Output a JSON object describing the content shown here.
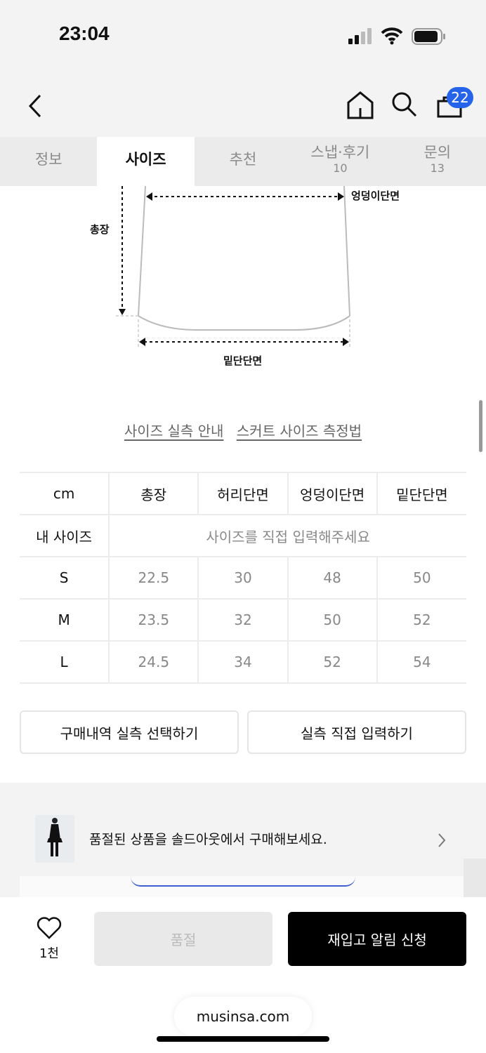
{
  "status": {
    "time": "23:04"
  },
  "header": {
    "cart_count": "22"
  },
  "tabs": [
    {
      "label": "정보"
    },
    {
      "label": "사이즈"
    },
    {
      "label": "추천"
    },
    {
      "label": "스냅·후기",
      "count": "10"
    },
    {
      "label": "문의",
      "count": "13"
    }
  ],
  "diagram": {
    "hip": "엉덩이단면",
    "length": "총장",
    "hem": "밑단단면"
  },
  "links": {
    "guide": "사이즈 실측 안내",
    "measure": "스커트 사이즈 측정법"
  },
  "table": {
    "headers": [
      "cm",
      "총장",
      "허리단면",
      "엉덩이단면",
      "밑단단면"
    ],
    "my_size_label": "내 사이즈",
    "my_size_placeholder": "사이즈를 직접 입력해주세요",
    "rows": [
      [
        "S",
        "22.5",
        "30",
        "48",
        "50"
      ],
      [
        "M",
        "23.5",
        "32",
        "50",
        "52"
      ],
      [
        "L",
        "24.5",
        "34",
        "52",
        "54"
      ]
    ]
  },
  "buttons": {
    "history": "구매내역 실측 선택하기",
    "manual": "실측 직접 입력하기"
  },
  "banner": {
    "text": "품절된 상품을 솔드아웃에서 구매해보세요."
  },
  "bottom": {
    "like_count": "1천",
    "soldout": "품절",
    "restock": "재입고 알림 신청",
    "url": "musinsa.com"
  },
  "colors": {
    "badge": "#2563eb",
    "primary": "#000000"
  }
}
